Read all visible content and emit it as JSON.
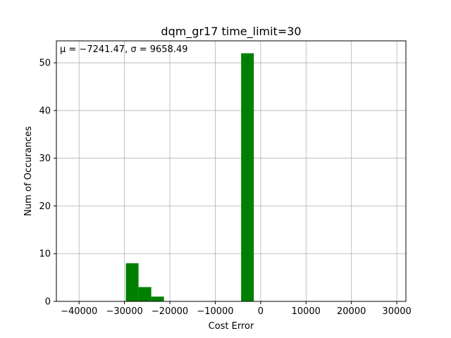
{
  "chart_data": {
    "type": "histogram",
    "title": "dqm_gr17 time_limit=30",
    "xlabel": "Cost Error",
    "ylabel": "Num of Occurances",
    "annotation": "μ = −7241.47,  σ = 9658.49",
    "xlim": [
      -45000,
      32000
    ],
    "ylim": [
      0,
      54.6
    ],
    "xticks": [
      -40000,
      -30000,
      -20000,
      -10000,
      0,
      10000,
      20000,
      30000
    ],
    "xtick_labels": [
      "−40000",
      "−30000",
      "−20000",
      "−10000",
      "0",
      "10000",
      "20000",
      "30000"
    ],
    "yticks": [
      0,
      10,
      20,
      30,
      40,
      50
    ],
    "ytick_labels": [
      "0",
      "10",
      "20",
      "30",
      "40",
      "50"
    ],
    "grid": true,
    "bar_color": "#008000",
    "bins": [
      {
        "x0": -29700,
        "x1": -26900,
        "count": 8
      },
      {
        "x0": -26900,
        "x1": -24100,
        "count": 3
      },
      {
        "x0": -24100,
        "x1": -21300,
        "count": 1
      },
      {
        "x0": -4300,
        "x1": -1500,
        "count": 52
      }
    ]
  }
}
